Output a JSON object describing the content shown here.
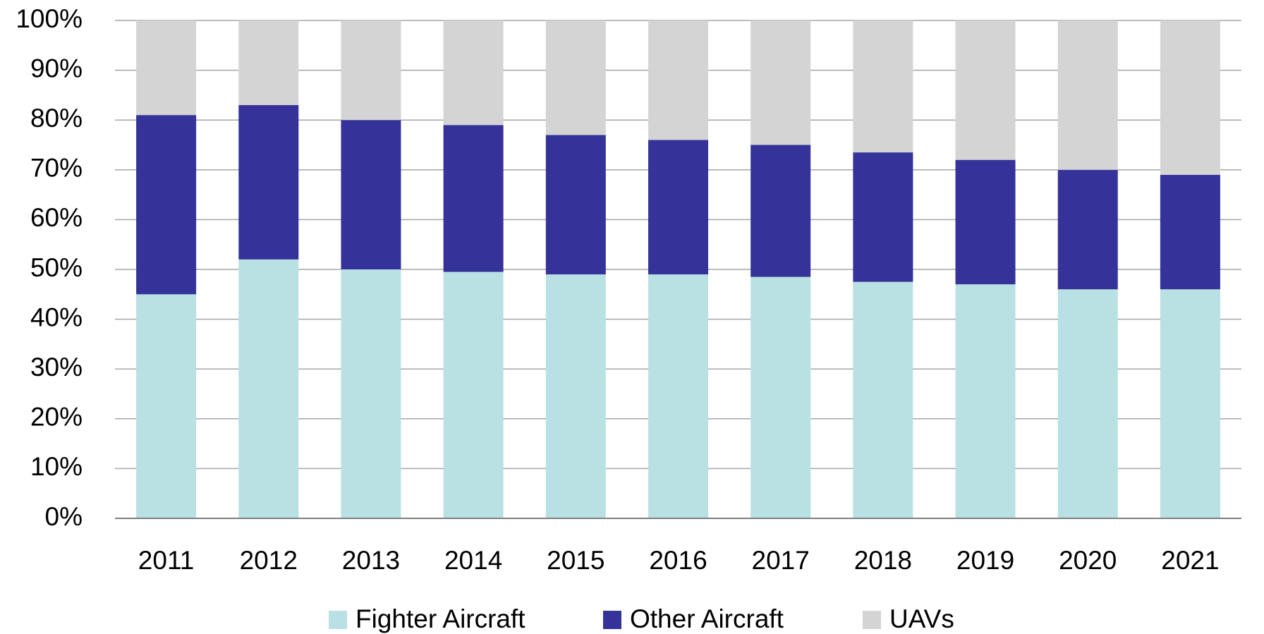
{
  "chart_data": {
    "type": "stacked_bar",
    "categories": [
      "2011",
      "2012",
      "2013",
      "2014",
      "2015",
      "2016",
      "2017",
      "2018",
      "2019",
      "2020",
      "2021"
    ],
    "series": [
      {
        "name": "Fighter Aircraft",
        "color": "#b9e0e3",
        "values": [
          45,
          52,
          50,
          49.5,
          49,
          49,
          48.5,
          47.5,
          47,
          46,
          46
        ]
      },
      {
        "name": "Other Aircraft",
        "color": "#35339a",
        "values": [
          36,
          31,
          30,
          29.5,
          28,
          27,
          26.5,
          26,
          25,
          24,
          23
        ]
      },
      {
        "name": "UAVs",
        "color": "#d4d4d4",
        "values": [
          19,
          17,
          20,
          21,
          23,
          24,
          25,
          26.5,
          28,
          30,
          31
        ]
      }
    ],
    "ylim": [
      0,
      100
    ],
    "yticks": [
      {
        "value": 0,
        "label": "0%"
      },
      {
        "value": 10,
        "label": "10%"
      },
      {
        "value": 20,
        "label": "20%"
      },
      {
        "value": 30,
        "label": "30%"
      },
      {
        "value": 40,
        "label": "40%"
      },
      {
        "value": 50,
        "label": "50%"
      },
      {
        "value": 60,
        "label": "60%"
      },
      {
        "value": 70,
        "label": "70%"
      },
      {
        "value": 80,
        "label": "80%"
      },
      {
        "value": 90,
        "label": "90%"
      },
      {
        "value": 100,
        "label": "100%"
      }
    ],
    "grid": true,
    "legend": "bottom"
  }
}
